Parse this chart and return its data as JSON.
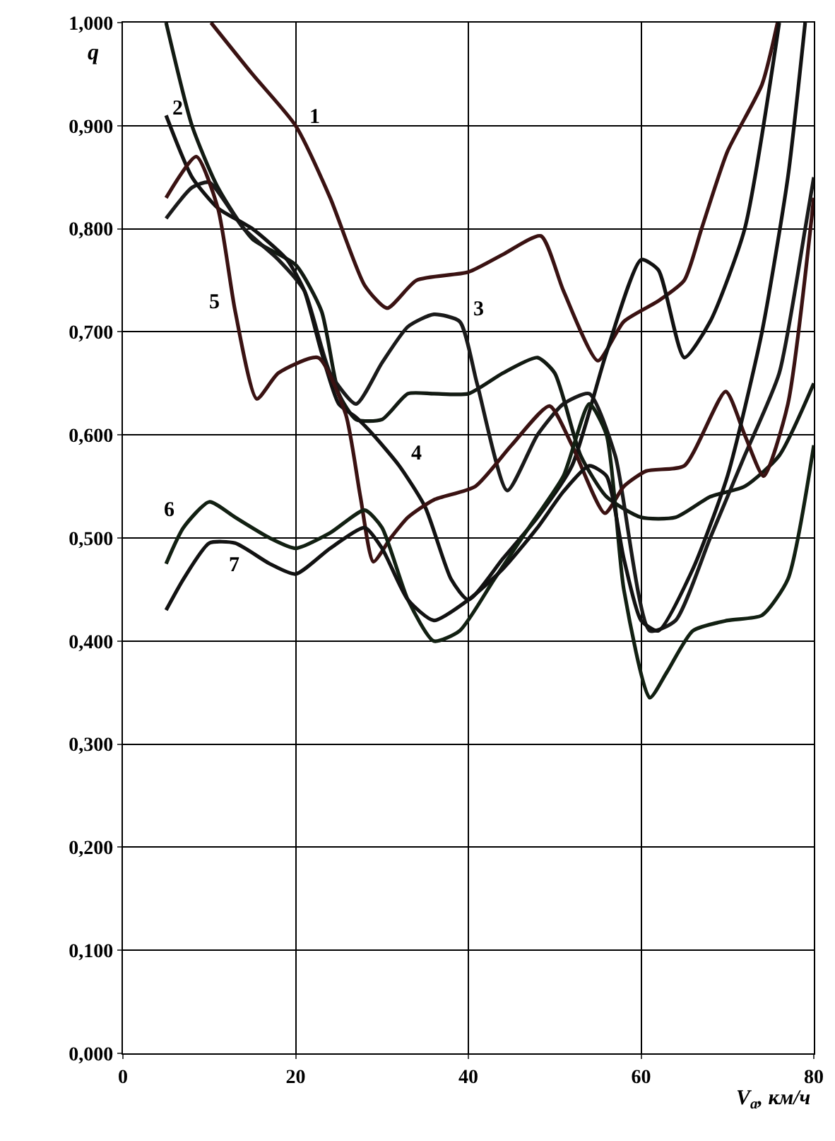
{
  "chart_data": {
    "type": "line",
    "xlabel": "V$_{a}$, км/ч",
    "ylabel": "q",
    "xlim": [
      0,
      80
    ],
    "xticks": [
      0,
      20,
      40,
      60,
      80
    ],
    "ylim": [
      0,
      1
    ],
    "yticks": [
      {
        "value": 0,
        "label": "0,000"
      },
      {
        "value": 0.1,
        "label": "0,100"
      },
      {
        "value": 0.2,
        "label": "0,200"
      },
      {
        "value": 0.3,
        "label": "0,300"
      },
      {
        "value": 0.4,
        "label": "0,400"
      },
      {
        "value": 0.5,
        "label": "0,500"
      },
      {
        "value": 0.6,
        "label": "0,600"
      },
      {
        "value": 0.7,
        "label": "0,700"
      },
      {
        "value": 0.8,
        "label": "0,800"
      },
      {
        "value": 0.9,
        "label": "0,900"
      },
      {
        "value": 1.0,
        "label": "1,000"
      }
    ],
    "grid": true,
    "legend": false,
    "marker": "none",
    "line_style": "solid",
    "series": [
      {
        "name": "1",
        "color": "#3a1212",
        "x": [
          10.2,
          15,
          20,
          24,
          28,
          30.6,
          34,
          40,
          44,
          48.4,
          51,
          55,
          58,
          62,
          65,
          67,
          70,
          74,
          75.8
        ],
        "values": [
          1.0,
          0.95,
          0.9,
          0.83,
          0.745,
          0.723,
          0.75,
          0.758,
          0.775,
          0.793,
          0.74,
          0.672,
          0.71,
          0.73,
          0.75,
          0.8,
          0.875,
          0.94,
          1.0
        ]
      },
      {
        "name": "2",
        "color": "#121a12",
        "x": [
          5,
          8,
          11,
          15,
          20,
          23,
          25,
          27,
          30,
          33,
          36,
          40,
          44,
          48,
          50,
          53,
          56,
          60,
          64,
          68,
          72,
          76,
          80
        ],
        "values": [
          1.0,
          0.9,
          0.84,
          0.79,
          0.765,
          0.72,
          0.64,
          0.615,
          0.615,
          0.64,
          0.64,
          0.64,
          0.66,
          0.675,
          0.66,
          0.58,
          0.54,
          0.52,
          0.52,
          0.54,
          0.55,
          0.58,
          0.65
        ]
      },
      {
        "name": "3",
        "color": "#1a1a1a",
        "x": [
          5,
          8,
          10,
          14,
          18,
          21,
          24,
          27,
          30,
          33,
          36,
          39,
          41,
          44.5,
          48,
          51,
          54,
          57,
          61,
          64,
          68,
          72,
          76,
          79,
          80
        ],
        "values": [
          0.81,
          0.84,
          0.845,
          0.8,
          0.77,
          0.74,
          0.66,
          0.63,
          0.67,
          0.705,
          0.717,
          0.71,
          0.65,
          0.546,
          0.6,
          0.63,
          0.64,
          0.58,
          0.41,
          0.42,
          0.5,
          0.58,
          0.66,
          0.8,
          0.85
        ]
      },
      {
        "name": "4",
        "color": "#121212",
        "x": [
          5,
          8,
          11,
          15,
          19,
          21,
          23,
          25,
          27,
          29,
          32,
          35,
          38,
          40,
          44,
          48,
          52,
          56,
          60,
          62,
          65,
          68,
          72,
          76
        ],
        "values": [
          0.91,
          0.85,
          0.82,
          0.8,
          0.77,
          0.74,
          0.68,
          0.63,
          0.617,
          0.6,
          0.57,
          0.53,
          0.46,
          0.44,
          0.48,
          0.52,
          0.57,
          0.68,
          0.77,
          0.76,
          0.675,
          0.71,
          0.8,
          1.0
        ]
      },
      {
        "name": "5",
        "color": "#3a1212",
        "x": [
          5,
          8.5,
          11,
          13,
          15.5,
          18,
          22.6,
          25.8,
          27.5,
          29,
          31,
          33,
          36,
          40.8,
          45,
          49.4,
          52,
          55.8,
          58,
          60.6,
          65,
          69.8,
          72,
          74.2,
          77,
          80
        ],
        "values": [
          0.83,
          0.87,
          0.82,
          0.72,
          0.635,
          0.66,
          0.675,
          0.62,
          0.54,
          0.477,
          0.5,
          0.52,
          0.537,
          0.55,
          0.59,
          0.628,
          0.59,
          0.524,
          0.55,
          0.565,
          0.57,
          0.642,
          0.6,
          0.56,
          0.63,
          0.83
        ]
      },
      {
        "name": "6",
        "color": "#122012",
        "x": [
          5,
          7,
          10,
          13,
          17,
          20,
          24,
          28,
          30,
          33,
          36,
          39,
          43,
          47,
          51,
          54,
          56,
          58,
          61,
          63,
          66,
          70,
          74,
          77,
          80
        ],
        "values": [
          0.475,
          0.51,
          0.535,
          0.52,
          0.5,
          0.49,
          0.505,
          0.527,
          0.51,
          0.44,
          0.4,
          0.41,
          0.46,
          0.51,
          0.56,
          0.63,
          0.6,
          0.45,
          0.345,
          0.37,
          0.41,
          0.42,
          0.425,
          0.46,
          0.59
        ]
      },
      {
        "name": "7",
        "color": "#121212",
        "x": [
          5,
          7,
          10,
          13,
          17,
          20,
          24,
          28,
          30,
          33,
          36,
          40,
          44,
          48,
          51,
          54,
          56,
          58,
          60,
          62,
          66,
          70,
          74,
          77,
          79
        ],
        "values": [
          0.43,
          0.46,
          0.495,
          0.495,
          0.475,
          0.465,
          0.49,
          0.51,
          0.49,
          0.44,
          0.42,
          0.44,
          0.47,
          0.51,
          0.545,
          0.57,
          0.56,
          0.48,
          0.42,
          0.41,
          0.47,
          0.56,
          0.7,
          0.85,
          1.0
        ]
      }
    ]
  }
}
